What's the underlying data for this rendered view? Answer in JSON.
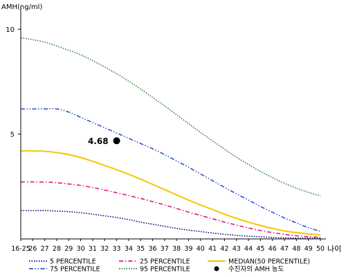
{
  "chart_data": {
    "type": "line",
    "ylabel": "AMH(ng/ml)",
    "xlabel": "나이",
    "y_ticks": [
      5,
      10
    ],
    "ylim": [
      0,
      10.8
    ],
    "categories": [
      "16-25",
      "26",
      "27",
      "28",
      "29",
      "30",
      "31",
      "32",
      "33",
      "34",
      "35",
      "36",
      "37",
      "38",
      "39",
      "40",
      "41",
      "42",
      "43",
      "44",
      "45",
      "46",
      "47",
      "48",
      "49",
      "50"
    ],
    "series": [
      {
        "name": "5 PERCENTILE",
        "color": "#000080",
        "dash": "dotted",
        "values": [
          1.35,
          1.35,
          1.35,
          1.33,
          1.3,
          1.25,
          1.18,
          1.1,
          1.02,
          0.92,
          0.8,
          0.7,
          0.6,
          0.5,
          0.42,
          0.35,
          0.28,
          0.22,
          0.17,
          0.13,
          0.1,
          0.07,
          0.05,
          0.04,
          0.03,
          0.03
        ]
      },
      {
        "name": "25 PERCENTILE",
        "color": "#e0147c",
        "dash": "dashdot",
        "values": [
          2.72,
          2.72,
          2.71,
          2.68,
          2.62,
          2.55,
          2.45,
          2.33,
          2.2,
          2.07,
          1.93,
          1.78,
          1.62,
          1.45,
          1.28,
          1.12,
          0.96,
          0.8,
          0.66,
          0.52,
          0.4,
          0.3,
          0.22,
          0.15,
          0.1,
          0.08
        ]
      },
      {
        "name": "MEDIAN(50 PERCENTILE)",
        "color": "#f0c800",
        "dash": "solid",
        "values": [
          4.2,
          4.2,
          4.18,
          4.12,
          4.02,
          3.88,
          3.7,
          3.5,
          3.3,
          3.08,
          2.85,
          2.6,
          2.35,
          2.1,
          1.85,
          1.62,
          1.4,
          1.18,
          0.98,
          0.8,
          0.64,
          0.5,
          0.38,
          0.3,
          0.24,
          0.2
        ]
      },
      {
        "name": "75 PERCENTILE",
        "color": "#3050c8",
        "dash": "dashdotdot",
        "values": [
          6.2,
          6.2,
          6.2,
          6.2,
          6.05,
          5.8,
          5.55,
          5.3,
          5.05,
          4.8,
          4.55,
          4.3,
          4.02,
          3.72,
          3.42,
          3.1,
          2.78,
          2.46,
          2.15,
          1.85,
          1.55,
          1.27,
          1.0,
          0.76,
          0.54,
          0.36
        ]
      },
      {
        "name": "95 PERCENTILE",
        "color": "#2e7d32",
        "dash": "dotted",
        "values": [
          9.6,
          9.5,
          9.38,
          9.2,
          9.0,
          8.78,
          8.5,
          8.2,
          7.88,
          7.52,
          7.15,
          6.75,
          6.35,
          5.92,
          5.5,
          5.08,
          4.68,
          4.28,
          3.9,
          3.55,
          3.22,
          2.92,
          2.65,
          2.42,
          2.22,
          2.05
        ]
      }
    ],
    "point": {
      "name": "수진자의 AMH 농도",
      "label": "4.68",
      "x": "33",
      "y": 4.68
    },
    "legend": "bottom"
  }
}
